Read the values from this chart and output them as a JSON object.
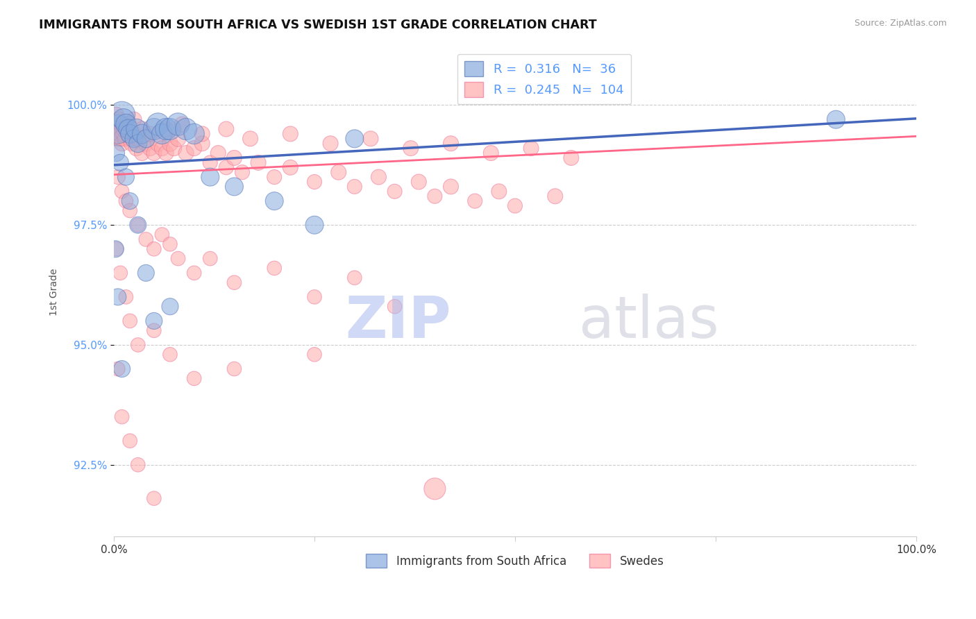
{
  "title": "IMMIGRANTS FROM SOUTH AFRICA VS SWEDISH 1ST GRADE CORRELATION CHART",
  "source": "Source: ZipAtlas.com",
  "ylabel": "1st Grade",
  "ytick_values": [
    100.0,
    97.5,
    95.0,
    92.5
  ],
  "legend_label1": "Immigrants from South Africa",
  "legend_label2": "Swedes",
  "R1": 0.316,
  "N1": 36,
  "R2": 0.245,
  "N2": 104,
  "color_blue": "#88AADD",
  "color_pink": "#FFAAAA",
  "color_blue_edge": "#5577BB",
  "color_pink_edge": "#EE7799",
  "color_blue_line": "#4466BB",
  "color_pink_line": "#FF6688",
  "color_ytick": "#5599FF",
  "color_source": "#999999",
  "xlim": [
    0,
    100
  ],
  "ylim": [
    91.0,
    101.2
  ],
  "blue_dots_x": [
    0.5,
    1.0,
    1.2,
    1.5,
    1.8,
    2.0,
    2.5,
    2.8,
    3.0,
    3.5,
    4.0,
    5.0,
    5.5,
    6.0,
    6.5,
    7.0,
    8.0,
    9.0,
    10.0,
    12.0,
    15.0,
    20.0,
    25.0,
    30.0,
    0.3,
    0.8,
    1.5,
    2.0,
    3.0,
    4.0,
    5.0,
    7.0,
    0.2,
    0.5,
    1.0,
    90.0
  ],
  "blue_dots_y": [
    99.5,
    99.8,
    99.7,
    99.6,
    99.5,
    99.4,
    99.3,
    99.5,
    99.2,
    99.4,
    99.3,
    99.5,
    99.6,
    99.4,
    99.5,
    99.5,
    99.6,
    99.5,
    99.4,
    98.5,
    98.3,
    98.0,
    97.5,
    99.3,
    99.0,
    98.8,
    98.5,
    98.0,
    97.5,
    96.5,
    95.5,
    95.8,
    97.0,
    96.0,
    94.5,
    99.7
  ],
  "blue_dots_s": [
    900,
    750,
    500,
    450,
    400,
    380,
    350,
    450,
    350,
    400,
    350,
    500,
    550,
    450,
    500,
    500,
    550,
    500,
    450,
    350,
    350,
    350,
    350,
    350,
    300,
    300,
    300,
    300,
    300,
    300,
    300,
    300,
    300,
    300,
    300,
    350
  ],
  "pink_dots_x": [
    0.2,
    0.3,
    0.4,
    0.5,
    0.6,
    0.7,
    0.8,
    1.0,
    1.2,
    1.4,
    1.6,
    1.8,
    2.0,
    2.2,
    2.5,
    2.8,
    3.0,
    3.5,
    4.0,
    4.5,
    5.0,
    5.5,
    6.0,
    6.5,
    7.0,
    7.5,
    8.0,
    9.0,
    10.0,
    11.0,
    12.0,
    13.0,
    14.0,
    15.0,
    16.0,
    18.0,
    20.0,
    22.0,
    25.0,
    28.0,
    30.0,
    33.0,
    35.0,
    38.0,
    40.0,
    42.0,
    45.0,
    48.0,
    50.0,
    55.0,
    0.5,
    1.0,
    1.5,
    2.0,
    3.0,
    4.0,
    5.0,
    6.0,
    7.0,
    8.0,
    10.0,
    12.0,
    15.0,
    20.0,
    25.0,
    30.0,
    35.0,
    0.3,
    0.8,
    1.5,
    2.0,
    3.0,
    5.0,
    7.0,
    10.0,
    25.0,
    0.5,
    1.0,
    2.0,
    3.0,
    5.0,
    0.3,
    0.6,
    0.9,
    1.2,
    1.8,
    2.5,
    3.5,
    4.5,
    6.5,
    8.5,
    11.0,
    14.0,
    17.0,
    22.0,
    27.0,
    32.0,
    37.0,
    42.0,
    47.0,
    52.0,
    57.0,
    40.0,
    15.0
  ],
  "pink_dots_y": [
    99.6,
    99.5,
    99.4,
    99.3,
    99.5,
    99.4,
    99.3,
    99.2,
    99.4,
    99.3,
    99.5,
    99.4,
    99.3,
    99.2,
    99.4,
    99.1,
    99.3,
    99.0,
    99.2,
    99.1,
    99.0,
    99.2,
    99.1,
    99.0,
    99.2,
    99.1,
    99.3,
    99.0,
    99.1,
    99.2,
    98.8,
    99.0,
    98.7,
    98.9,
    98.6,
    98.8,
    98.5,
    98.7,
    98.4,
    98.6,
    98.3,
    98.5,
    98.2,
    98.4,
    98.1,
    98.3,
    98.0,
    98.2,
    97.9,
    98.1,
    98.5,
    98.2,
    98.0,
    97.8,
    97.5,
    97.2,
    97.0,
    97.3,
    97.1,
    96.8,
    96.5,
    96.8,
    96.3,
    96.6,
    96.0,
    96.4,
    95.8,
    97.0,
    96.5,
    96.0,
    95.5,
    95.0,
    95.3,
    94.8,
    94.3,
    94.8,
    94.5,
    93.5,
    93.0,
    92.5,
    91.8,
    99.8,
    99.7,
    99.6,
    99.5,
    99.6,
    99.7,
    99.5,
    99.4,
    99.5,
    99.6,
    99.4,
    99.5,
    99.3,
    99.4,
    99.2,
    99.3,
    99.1,
    99.2,
    99.0,
    99.1,
    98.9,
    92.0,
    94.5
  ],
  "pink_dots_s": [
    320,
    280,
    260,
    250,
    280,
    260,
    250,
    250,
    270,
    250,
    280,
    270,
    250,
    250,
    270,
    250,
    270,
    250,
    270,
    250,
    250,
    270,
    250,
    250,
    270,
    250,
    270,
    250,
    250,
    250,
    230,
    250,
    230,
    250,
    230,
    250,
    230,
    250,
    230,
    250,
    230,
    250,
    230,
    250,
    230,
    250,
    230,
    250,
    230,
    250,
    230,
    220,
    220,
    220,
    220,
    220,
    220,
    220,
    220,
    220,
    220,
    220,
    220,
    220,
    220,
    220,
    220,
    220,
    220,
    220,
    220,
    220,
    220,
    220,
    220,
    220,
    220,
    220,
    220,
    220,
    220,
    250,
    250,
    250,
    250,
    250,
    250,
    250,
    250,
    250,
    250,
    250,
    250,
    250,
    250,
    250,
    250,
    250,
    250,
    250,
    250,
    250,
    500,
    220
  ],
  "blue_trend_x": [
    0,
    100
  ],
  "blue_trend_y": [
    98.75,
    99.72
  ],
  "pink_trend_x": [
    0,
    100
  ],
  "pink_trend_y": [
    98.55,
    99.35
  ]
}
